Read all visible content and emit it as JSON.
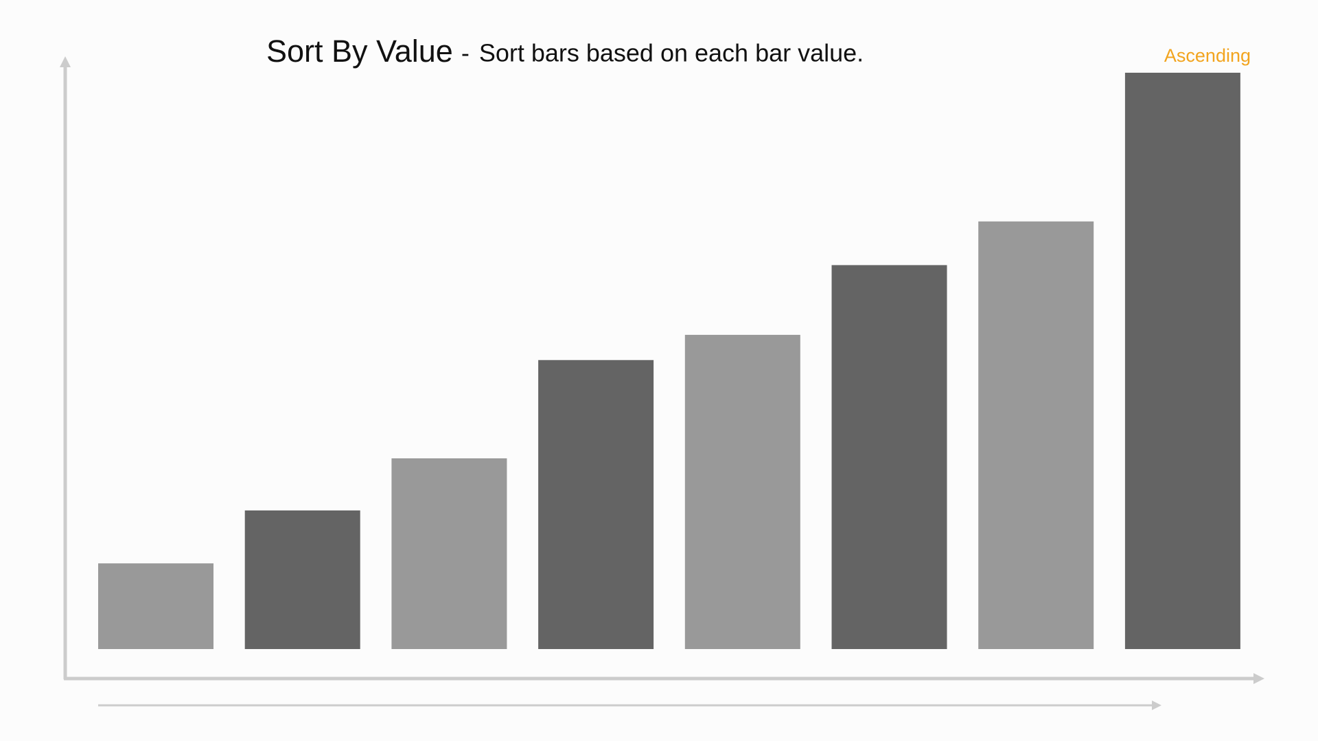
{
  "chart_data": {
    "type": "bar",
    "title": "Sort By Value",
    "separator": "-",
    "subtitle": "Sort bars based on each bar value.",
    "annotation": "Ascending",
    "annotation_color": "#f2a41e",
    "values": [
      102,
      165,
      227,
      344,
      374,
      457,
      509,
      686
    ],
    "colors": [
      "#999999",
      "#646464",
      "#999999",
      "#646464",
      "#999999",
      "#646464",
      "#999999",
      "#646464"
    ]
  }
}
